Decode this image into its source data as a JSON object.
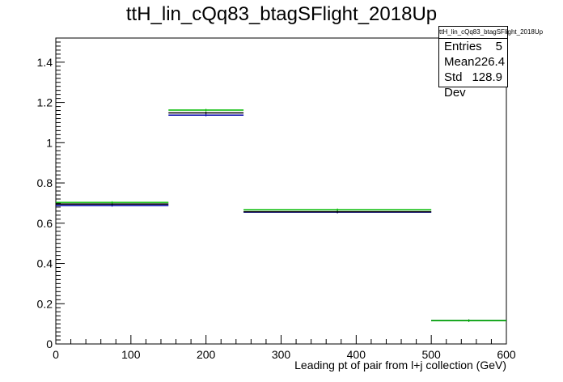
{
  "chart_data": {
    "type": "histogram",
    "title": "ttH_lin_cQq83_btagSFlight_2018Up",
    "xlabel": "Leading pt of pair from l+j collection (GeV)",
    "ylabel": "",
    "xlim": [
      0,
      600
    ],
    "ylim": [
      0,
      1.52
    ],
    "x_ticks": [
      "0",
      "100",
      "200",
      "300",
      "400",
      "500",
      "600"
    ],
    "y_ticks": [
      "0",
      "0.2",
      "0.4",
      "0.6",
      "0.8",
      "1",
      "1.2",
      "1.4"
    ],
    "bin_edges": [
      0,
      150,
      250,
      500,
      600
    ],
    "series": [
      {
        "color": "#0000aa",
        "values": [
          0.688,
          1.137,
          0.655,
          0.116
        ]
      },
      {
        "color": "#000000",
        "values": [
          0.695,
          1.148,
          0.657,
          0.116
        ]
      },
      {
        "color": "#00bb00",
        "values": [
          0.703,
          1.162,
          0.667,
          0.116
        ]
      }
    ],
    "grid": false
  },
  "stats": {
    "title": "ttH_lin_cQq83_btagSFlight_2018Up",
    "entries_label": "Entries",
    "entries_value": "5",
    "mean_label": "Mean",
    "mean_value": "226.4",
    "stddev_label": "Std Dev",
    "stddev_value": "128.9"
  }
}
